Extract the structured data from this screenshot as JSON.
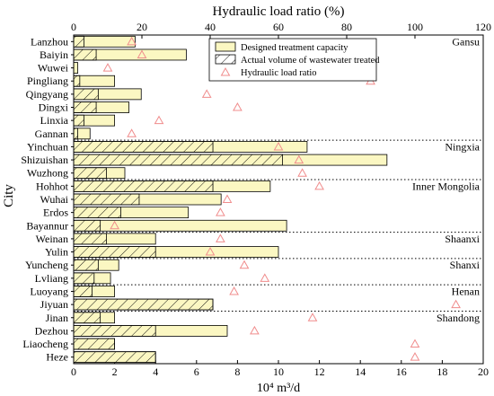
{
  "chart_data": {
    "type": "bar",
    "orientation": "horizontal",
    "ylabel": "City",
    "xlabel_bottom": "10⁴ m³/d",
    "xlabel_top": "Hydraulic load ratio (%)",
    "xlim_bottom": [
      0,
      20
    ],
    "xlim_top": [
      0,
      120
    ],
    "xticks_bottom": [
      0,
      2,
      4,
      6,
      8,
      10,
      12,
      14,
      16,
      18,
      20
    ],
    "xticks_top": [
      0,
      20,
      40,
      60,
      80,
      100,
      120
    ],
    "categories": [
      "Lanzhou",
      "Baiyin",
      "Wuwei",
      "Pingliang",
      "Qingyang",
      "Dingxi",
      "Linxia",
      "Gannan",
      "Yinchuan",
      "Shizuishan",
      "Wuzhong",
      "Hohhot",
      "Wuhai",
      "Erdos",
      "Bayannur",
      "Weinan",
      "Yulin",
      "Yuncheng",
      "Lvliang",
      "Luoyang",
      "Jiyuan",
      "Jinan",
      "Dezhou",
      "Liaocheng",
      "Heze"
    ],
    "series": [
      {
        "name": "Designed treatment capacity",
        "axis": "bottom",
        "values": [
          3.0,
          5.5,
          0.2,
          2.0,
          3.3,
          2.7,
          2.0,
          0.8,
          11.4,
          15.3,
          2.5,
          9.6,
          7.2,
          5.6,
          10.4,
          4.0,
          10.0,
          2.2,
          1.8,
          2.0,
          6.8,
          2.0,
          7.5,
          2.0,
          4.0
        ]
      },
      {
        "name": "Actual volume of wastewater treated",
        "axis": "bottom",
        "values": [
          0.5,
          1.1,
          0.0,
          0.3,
          1.2,
          1.1,
          0.5,
          0.2,
          6.8,
          10.2,
          1.6,
          6.8,
          3.2,
          2.3,
          1.3,
          1.6,
          4.0,
          1.2,
          1.0,
          0.9,
          6.8,
          1.3,
          4.0,
          2.0,
          4.0
        ]
      },
      {
        "name": "Hydraulic load ratio",
        "axis": "top",
        "values": [
          17,
          20,
          10,
          87,
          39,
          48,
          25,
          17,
          60,
          66,
          67,
          72,
          45,
          43,
          12,
          43,
          40,
          50,
          56,
          47,
          112,
          70,
          53,
          100,
          100
        ]
      }
    ],
    "regions": [
      {
        "name": "Gansu",
        "first": 0,
        "last": 7
      },
      {
        "name": "Ningxia",
        "first": 8,
        "last": 10
      },
      {
        "name": "Inner Mongolia",
        "first": 11,
        "last": 14
      },
      {
        "name": "Shaanxi",
        "first": 15,
        "last": 16
      },
      {
        "name": "Shanxi",
        "first": 17,
        "last": 18
      },
      {
        "name": "Henan",
        "first": 19,
        "last": 20
      },
      {
        "name": "Shandong",
        "first": 21,
        "last": 24
      }
    ],
    "legend_position": "top-center",
    "grid": false,
    "colors": {
      "bar_fill": "#fbf7c2",
      "bar_stroke": "#000000",
      "hatch": "#000000",
      "triangle": "#f08c8c"
    }
  }
}
